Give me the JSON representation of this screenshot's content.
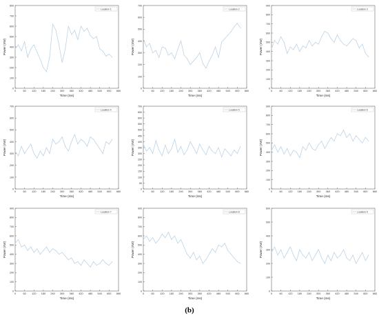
{
  "figure": {
    "caption": "(b)"
  },
  "chart_data": [
    {
      "type": "line",
      "legend": "Location 1",
      "xlabel": "Time (ms)",
      "ylabel": "Power (nW)",
      "xlim": [
        0,
        660
      ],
      "ylim": [
        0,
        800
      ],
      "xticks": [
        0,
        60,
        120,
        180,
        240,
        300,
        360,
        420,
        480,
        540,
        600,
        660
      ],
      "yticks": [
        0,
        100,
        200,
        300,
        400,
        500,
        600,
        700,
        800
      ],
      "series": [
        {
          "color": "#bcd3e6",
          "x": [
            0,
            20,
            40,
            60,
            80,
            100,
            120,
            140,
            160,
            180,
            200,
            220,
            240,
            260,
            280,
            300,
            320,
            340,
            360,
            380,
            400,
            420,
            440,
            460,
            480,
            500,
            520,
            540,
            560,
            580,
            600,
            620
          ],
          "y": [
            380,
            420,
            360,
            450,
            300,
            380,
            420,
            350,
            280,
            200,
            160,
            300,
            620,
            560,
            420,
            250,
            380,
            600,
            520,
            560,
            470,
            600,
            550,
            580,
            510,
            480,
            500,
            380,
            360,
            310,
            330,
            300
          ]
        }
      ]
    },
    {
      "type": "line",
      "legend": "Location 2",
      "xlabel": "Time (ms)",
      "ylabel": "Power (nW)",
      "xlim": [
        0,
        660
      ],
      "ylim": [
        0,
        700
      ],
      "xticks": [
        0,
        60,
        120,
        180,
        240,
        300,
        360,
        420,
        480,
        540,
        600,
        660
      ],
      "yticks": [
        0,
        100,
        200,
        300,
        400,
        500,
        600,
        700
      ],
      "series": [
        {
          "color": "#bcd3e6",
          "x": [
            0,
            20,
            40,
            60,
            80,
            100,
            120,
            140,
            160,
            180,
            200,
            220,
            240,
            260,
            280,
            300,
            320,
            340,
            360,
            380,
            400,
            420,
            440,
            460,
            480,
            500,
            520,
            540,
            560,
            580,
            600,
            620
          ],
          "y": [
            420,
            350,
            380,
            300,
            320,
            260,
            350,
            340,
            280,
            300,
            250,
            330,
            400,
            280,
            250,
            200,
            230,
            260,
            300,
            210,
            170,
            230,
            280,
            350,
            260,
            390,
            420,
            450,
            480,
            520,
            550,
            510
          ]
        }
      ]
    },
    {
      "type": "line",
      "legend": "Location 3",
      "xlabel": "Time (ms)",
      "ylabel": "Power (nW)",
      "xlim": [
        0,
        660
      ],
      "ylim": [
        0,
        900
      ],
      "xticks": [
        0,
        60,
        120,
        180,
        240,
        300,
        360,
        420,
        480,
        540,
        600,
        660
      ],
      "yticks": [
        0,
        100,
        200,
        300,
        400,
        500,
        600,
        700,
        800,
        900
      ],
      "series": [
        {
          "color": "#bcd3e6",
          "x": [
            0,
            20,
            40,
            60,
            80,
            100,
            120,
            140,
            160,
            180,
            200,
            220,
            240,
            260,
            280,
            300,
            320,
            340,
            360,
            380,
            400,
            420,
            440,
            460,
            480,
            500,
            520,
            540,
            560,
            580,
            600,
            620
          ],
          "y": [
            430,
            520,
            480,
            560,
            500,
            380,
            450,
            420,
            480,
            400,
            460,
            440,
            520,
            460,
            500,
            480,
            560,
            620,
            600,
            540,
            500,
            580,
            520,
            480,
            460,
            500,
            540,
            520,
            440,
            480,
            380,
            340
          ]
        }
      ]
    },
    {
      "type": "line",
      "legend": "Location 4",
      "xlabel": "Time (ms)",
      "ylabel": "Power (nW)",
      "xlim": [
        0,
        660
      ],
      "ylim": [
        0,
        700
      ],
      "xticks": [
        0,
        60,
        120,
        180,
        240,
        300,
        360,
        420,
        480,
        540,
        600,
        660
      ],
      "yticks": [
        0,
        100,
        200,
        300,
        400,
        500,
        600,
        700
      ],
      "series": [
        {
          "color": "#bcd3e6",
          "x": [
            0,
            20,
            40,
            60,
            80,
            100,
            120,
            140,
            160,
            180,
            200,
            220,
            240,
            260,
            280,
            300,
            320,
            340,
            360,
            380,
            400,
            420,
            440,
            460,
            480,
            500,
            520,
            540,
            560,
            580,
            600,
            620
          ],
          "y": [
            320,
            280,
            360,
            300,
            340,
            380,
            300,
            260,
            320,
            280,
            350,
            300,
            420,
            380,
            400,
            440,
            360,
            320,
            400,
            460,
            380,
            420,
            400,
            360,
            440,
            420,
            380,
            340,
            300,
            400,
            380,
            420
          ]
        }
      ]
    },
    {
      "type": "line",
      "legend": "Location 5",
      "xlabel": "Time (ms)",
      "ylabel": "Power (nW)",
      "xlim": [
        0,
        660
      ],
      "ylim": [
        0,
        700
      ],
      "xticks": [
        0,
        60,
        120,
        180,
        240,
        300,
        360,
        420,
        480,
        540,
        600,
        660
      ],
      "yticks": [
        0,
        50,
        100,
        150,
        200,
        250,
        300,
        350,
        400,
        450,
        500,
        550,
        600,
        650,
        700
      ],
      "series": [
        {
          "color": "#bcd3e6",
          "x": [
            0,
            20,
            40,
            60,
            80,
            100,
            120,
            140,
            160,
            180,
            200,
            220,
            240,
            260,
            280,
            300,
            320,
            340,
            360,
            380,
            400,
            420,
            440,
            460,
            480,
            500,
            520,
            540,
            560,
            580,
            600,
            620
          ],
          "y": [
            380,
            320,
            350,
            300,
            410,
            330,
            280,
            370,
            300,
            340,
            420,
            310,
            360,
            290,
            330,
            400,
            350,
            300,
            380,
            330,
            290,
            360,
            320,
            300,
            350,
            270,
            340,
            310,
            280,
            330,
            300,
            360
          ]
        }
      ]
    },
    {
      "type": "line",
      "legend": "Location 6",
      "xlabel": "Time (ms)",
      "ylabel": "Power (nW)",
      "xlim": [
        0,
        660
      ],
      "ylim": [
        0,
        900
      ],
      "xticks": [
        0,
        60,
        120,
        180,
        240,
        300,
        360,
        420,
        480,
        540,
        600,
        660
      ],
      "yticks": [
        0,
        100,
        200,
        300,
        400,
        500,
        600,
        700,
        800,
        900
      ],
      "series": [
        {
          "color": "#bcd3e6",
          "x": [
            0,
            20,
            40,
            60,
            80,
            100,
            120,
            140,
            160,
            180,
            200,
            220,
            240,
            260,
            280,
            300,
            320,
            340,
            360,
            380,
            400,
            420,
            440,
            460,
            480,
            500,
            520,
            540,
            560,
            580,
            600,
            620
          ],
          "y": [
            420,
            480,
            400,
            460,
            380,
            440,
            360,
            420,
            400,
            340,
            460,
            420,
            500,
            440,
            420,
            480,
            520,
            440,
            500,
            560,
            520,
            600,
            580,
            640,
            560,
            600,
            520,
            580,
            540,
            500,
            560,
            520
          ]
        }
      ]
    },
    {
      "type": "line",
      "legend": "Location 7",
      "xlabel": "Time (ms)",
      "ylabel": "Power (nW)",
      "xlim": [
        0,
        660
      ],
      "ylim": [
        0,
        900
      ],
      "xticks": [
        0,
        60,
        120,
        180,
        240,
        300,
        360,
        420,
        480,
        540,
        600,
        660
      ],
      "yticks": [
        0,
        100,
        200,
        300,
        400,
        500,
        600,
        700,
        800,
        900
      ],
      "series": [
        {
          "color": "#bcd3e6",
          "x": [
            0,
            20,
            40,
            60,
            80,
            100,
            120,
            140,
            160,
            180,
            200,
            220,
            240,
            260,
            280,
            300,
            320,
            340,
            360,
            380,
            400,
            420,
            440,
            460,
            480,
            500,
            520,
            540,
            560,
            580,
            600,
            620
          ],
          "y": [
            520,
            560,
            480,
            500,
            440,
            480,
            420,
            460,
            400,
            440,
            480,
            420,
            460,
            440,
            400,
            420,
            380,
            340,
            360,
            300,
            320,
            280,
            340,
            300,
            260,
            320,
            280,
            300,
            340,
            300,
            280,
            320
          ]
        }
      ]
    },
    {
      "type": "line",
      "legend": "Location 8",
      "xlabel": "Time (ms)",
      "ylabel": "Power (nW)",
      "xlim": [
        0,
        660
      ],
      "ylim": [
        0,
        900
      ],
      "xticks": [
        0,
        60,
        120,
        180,
        240,
        300,
        360,
        420,
        480,
        540,
        600,
        660
      ],
      "yticks": [
        0,
        100,
        200,
        300,
        400,
        500,
        600,
        700,
        800,
        900
      ],
      "series": [
        {
          "color": "#bcd3e6",
          "x": [
            0,
            20,
            40,
            60,
            80,
            100,
            120,
            140,
            160,
            180,
            200,
            220,
            240,
            260,
            280,
            300,
            320,
            340,
            360,
            380,
            400,
            420,
            440,
            460,
            480,
            500,
            520,
            540,
            560,
            580,
            600,
            620
          ],
          "y": [
            560,
            600,
            540,
            580,
            520,
            560,
            620,
            580,
            640,
            560,
            600,
            520,
            560,
            480,
            400,
            360,
            420,
            340,
            380,
            300,
            340,
            400,
            460,
            420,
            500,
            480,
            520,
            440,
            400,
            360,
            320,
            300
          ]
        }
      ]
    },
    {
      "type": "line",
      "legend": "Location 9",
      "xlabel": "Time (ms)",
      "ylabel": "Power (nW)",
      "xlim": [
        0,
        660
      ],
      "ylim": [
        0,
        600
      ],
      "xticks": [
        0,
        60,
        120,
        180,
        240,
        300,
        360,
        420,
        480,
        540,
        600,
        660
      ],
      "yticks": [
        0,
        100,
        200,
        300,
        400,
        500,
        600
      ],
      "series": [
        {
          "color": "#bcd3e6",
          "x": [
            0,
            20,
            40,
            60,
            80,
            100,
            120,
            140,
            160,
            180,
            200,
            220,
            240,
            260,
            280,
            300,
            320,
            340,
            360,
            380,
            400,
            420,
            440,
            460,
            480,
            500,
            520,
            540,
            560,
            580,
            600,
            620
          ],
          "y": [
            280,
            320,
            260,
            300,
            240,
            280,
            320,
            260,
            220,
            300,
            260,
            240,
            280,
            220,
            260,
            300,
            240,
            200,
            260,
            220,
            280,
            240,
            260,
            300,
            240,
            220,
            260,
            200,
            240,
            280,
            220,
            260
          ]
        }
      ]
    }
  ]
}
